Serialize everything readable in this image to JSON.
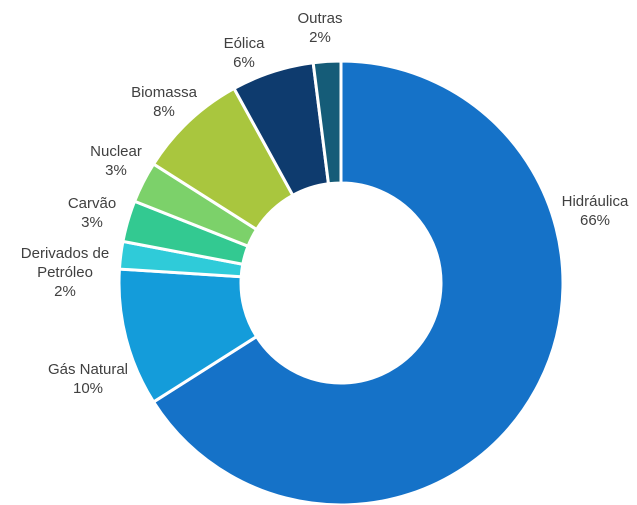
{
  "chart_data": {
    "type": "pie",
    "donut": true,
    "title": "",
    "slices": [
      {
        "label_lines": [
          "Hidráulica"
        ],
        "value_label": "66%",
        "value": 66,
        "color": "#1572C8"
      },
      {
        "label_lines": [
          "Gás Natural"
        ],
        "value_label": "10%",
        "value": 10,
        "color": "#149CDA"
      },
      {
        "label_lines": [
          "Derivados de",
          "Petróleo"
        ],
        "value_label": "2%",
        "value": 2,
        "color": "#2FCBD9"
      },
      {
        "label_lines": [
          "Carvão"
        ],
        "value_label": "3%",
        "value": 3,
        "color": "#33C991"
      },
      {
        "label_lines": [
          "Nuclear"
        ],
        "value_label": "3%",
        "value": 3,
        "color": "#7CD16A"
      },
      {
        "label_lines": [
          "Biomassa"
        ],
        "value_label": "8%",
        "value": 8,
        "color": "#A9C63E"
      },
      {
        "label_lines": [
          "Eólica"
        ],
        "value_label": "6%",
        "value": 6,
        "color": "#0E3B6E"
      },
      {
        "label_lines": [
          "Outras"
        ],
        "value_label": "2%",
        "value": 2,
        "color": "#155C78"
      }
    ]
  }
}
